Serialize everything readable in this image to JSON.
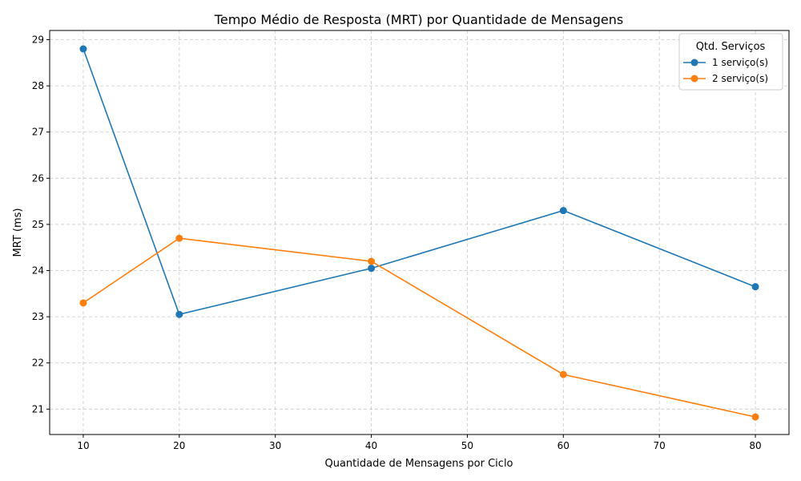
{
  "chart_data": {
    "type": "line",
    "title": "Tempo Médio de Resposta (MRT) por Quantidade de Mensagens",
    "xlabel": "Quantidade de Mensagens por Ciclo",
    "ylabel": "MRT (ms)",
    "xlim": [
      6.5,
      83.5
    ],
    "ylim": [
      20.45,
      29.2
    ],
    "xticks": [
      10,
      20,
      30,
      40,
      50,
      60,
      70,
      80
    ],
    "yticks": [
      21,
      22,
      23,
      24,
      25,
      26,
      27,
      28,
      29
    ],
    "grid": true,
    "legend": {
      "title": "Qtd. Serviços",
      "placement": "top-right"
    },
    "series": [
      {
        "name": "1 serviço(s)",
        "color": "#1f77b4",
        "x": [
          10,
          20,
          40,
          60,
          80
        ],
        "y": [
          28.8,
          23.05,
          24.05,
          25.3,
          23.65
        ]
      },
      {
        "name": "2 serviço(s)",
        "color": "#ff7f0e",
        "x": [
          10,
          20,
          40,
          60,
          80
        ],
        "y": [
          23.3,
          24.7,
          24.2,
          21.75,
          20.83
        ]
      }
    ]
  }
}
